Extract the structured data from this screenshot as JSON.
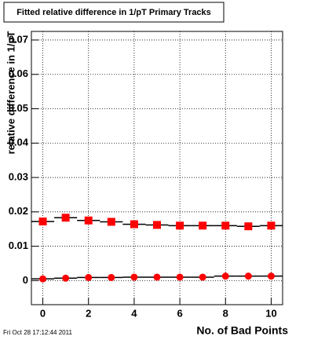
{
  "chart_data": {
    "type": "line",
    "title": "Fitted relative difference in 1/pT Primary Tracks",
    "x_label": "No. of Bad Points",
    "y_label": "relative difference in 1/pT",
    "footer": "Fri Oct 28 17:12:44 2011",
    "x": [
      0,
      1,
      2,
      3,
      4,
      5,
      6,
      7,
      8,
      9,
      10
    ],
    "series": [
      {
        "color": "#ff0000",
        "marker": "square",
        "values": [
          0.0172,
          0.0183,
          0.0175,
          0.0171,
          0.0164,
          0.0162,
          0.016,
          0.016,
          0.016,
          0.0158,
          0.016
        ]
      },
      {
        "color": "#ff0000",
        "marker": "circle",
        "values": [
          0.0005,
          0.0007,
          0.0009,
          0.0009,
          0.001,
          0.001,
          0.001,
          0.001,
          0.0013,
          0.0013,
          0.0013
        ]
      }
    ],
    "xlim": [
      -0.5,
      10.5
    ],
    "xticks": [
      0,
      2,
      4,
      6,
      8,
      10
    ],
    "ylim": [
      -0.007,
      0.0725
    ],
    "yticks": [
      0,
      0.01,
      0.02,
      0.03,
      0.04,
      0.05,
      0.06,
      0.07
    ],
    "grid": true
  }
}
